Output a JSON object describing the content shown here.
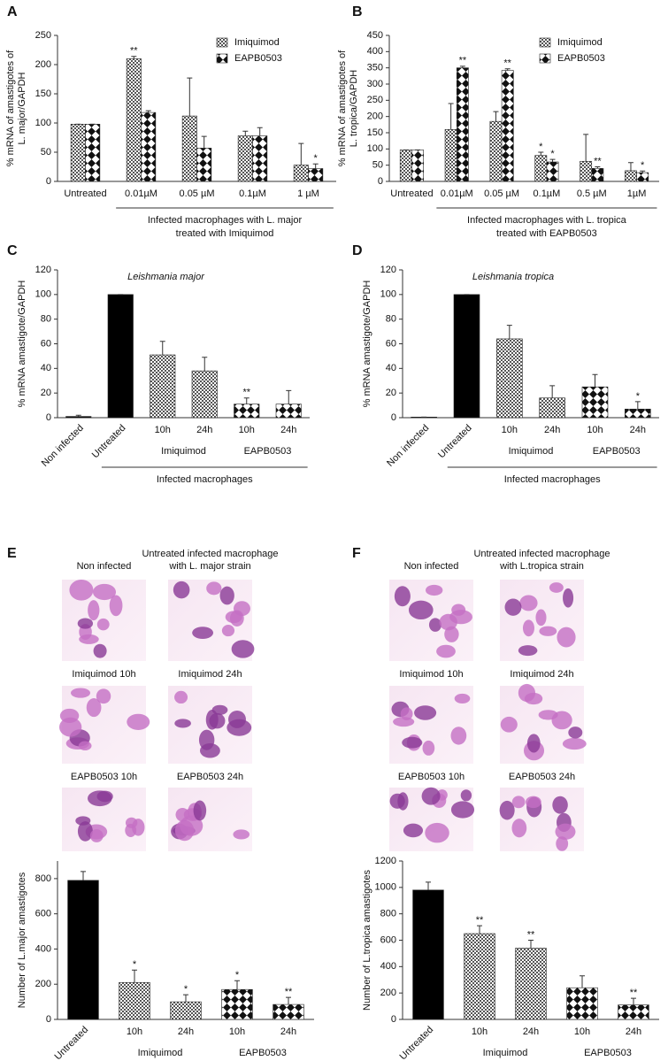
{
  "chart_data": [
    {
      "type": "bar",
      "panel": "A",
      "ylabel": [
        "% mRNA of amastigotes of",
        "L. major/GAPDH"
      ],
      "categories": [
        "Untreated",
        "0.01µM",
        "0.05 µM",
        "0.1µM",
        "1 µM"
      ],
      "series": [
        {
          "name": "Imiquimod",
          "pattern": "checker",
          "values": [
            98,
            210,
            112,
            78,
            28
          ],
          "errors": [
            0,
            4,
            65,
            8,
            37
          ]
        },
        {
          "name": "EAPB0503",
          "pattern": "diamond",
          "values": [
            98,
            118,
            57,
            78,
            22
          ],
          "errors": [
            0,
            3,
            20,
            14,
            8
          ]
        }
      ],
      "annotations": [
        {
          "series": 0,
          "index": 1,
          "text": "**"
        },
        {
          "series": 1,
          "index": 4,
          "text": "*"
        }
      ],
      "group": {
        "label": [
          "Infected macrophages with L. major",
          "treated with Imiquimod"
        ],
        "start": 1,
        "end": 4
      },
      "legend": "upper right",
      "ylim": [
        0,
        250
      ],
      "yticks": [
        0,
        50,
        100,
        150,
        200,
        250
      ]
    },
    {
      "type": "bar",
      "panel": "B",
      "ylabel": [
        "% mRNA of amastigotes of",
        "L. tropica/GAPDH"
      ],
      "categories": [
        "Untreated",
        "0.01µM",
        "0.05 µM",
        "0.1µM",
        "0.5 µM",
        "1µM"
      ],
      "series": [
        {
          "name": "Imiquimod",
          "pattern": "checker",
          "values": [
            97,
            160,
            185,
            80,
            62,
            33
          ],
          "errors": [
            0,
            80,
            30,
            10,
            83,
            25
          ]
        },
        {
          "name": "EAPB0503",
          "pattern": "diamond",
          "values": [
            97,
            350,
            342,
            60,
            40,
            27
          ],
          "errors": [
            0,
            5,
            5,
            8,
            5,
            5
          ]
        }
      ],
      "annotations": [
        {
          "series": 1,
          "index": 1,
          "text": "**"
        },
        {
          "series": 1,
          "index": 2,
          "text": "**"
        },
        {
          "series": 0,
          "index": 3,
          "text": "*"
        },
        {
          "series": 1,
          "index": 3,
          "text": "*"
        },
        {
          "series": 1,
          "index": 4,
          "text": "**"
        },
        {
          "series": 1,
          "index": 5,
          "text": "*"
        }
      ],
      "group": {
        "label": [
          "Infected macrophages with L. tropica",
          "treated with EAPB0503"
        ],
        "start": 1,
        "end": 5
      },
      "legend": "upper right",
      "ylim": [
        0,
        450
      ],
      "yticks": [
        0,
        50,
        100,
        150,
        200,
        250,
        300,
        350,
        400,
        450
      ]
    },
    {
      "type": "bar",
      "panel": "C",
      "title": "Leishmania major",
      "ylabel": [
        "% mRNA amastigote/GAPDH"
      ],
      "categories": [
        "Non infected",
        "Untreated",
        "10h",
        "24h",
        "10h",
        "24h"
      ],
      "values": [
        1,
        100,
        51,
        38,
        11,
        11
      ],
      "errors": [
        1,
        0,
        11,
        11,
        5,
        11
      ],
      "patterns": [
        "solid",
        "solid",
        "checker",
        "checker",
        "diamond",
        "diamond"
      ],
      "color": "#000000",
      "annotations": [
        {
          "index": 4,
          "text": "**"
        }
      ],
      "subgroups": [
        {
          "label": "Imiquimod",
          "start": 2,
          "end": 3
        },
        {
          "label": "EAPB0503",
          "start": 4,
          "end": 5
        }
      ],
      "group": {
        "label": [
          "Infected macrophages"
        ],
        "start": 1,
        "end": 5
      },
      "ylim": [
        0,
        120
      ],
      "yticks": [
        0,
        20,
        40,
        60,
        80,
        100,
        120
      ]
    },
    {
      "type": "bar",
      "panel": "D",
      "title": "Leishmania tropica",
      "ylabel": [
        "% mRNA amastigote/GAPDH"
      ],
      "categories": [
        "Non infected",
        "Untreated",
        "10h",
        "24h",
        "10h",
        "24h"
      ],
      "values": [
        0.5,
        100,
        64,
        16,
        25,
        7
      ],
      "errors": [
        0,
        0,
        11,
        10,
        10,
        6
      ],
      "patterns": [
        "solid",
        "solid",
        "checker",
        "checker",
        "diamond",
        "diamond"
      ],
      "color": "#000000",
      "annotations": [
        {
          "index": 5,
          "text": "*"
        }
      ],
      "subgroups": [
        {
          "label": "Imiquimod",
          "start": 2,
          "end": 3
        },
        {
          "label": "EAPB0503",
          "start": 4,
          "end": 5
        }
      ],
      "group": {
        "label": [
          "Infected macrophages"
        ],
        "start": 1,
        "end": 5
      },
      "ylim": [
        0,
        120
      ],
      "yticks": [
        0,
        20,
        40,
        60,
        80,
        100,
        120
      ]
    },
    {
      "type": "bar",
      "ylabel": [
        "Number of L.major amastigotes"
      ],
      "categories": [
        "Untreated",
        "10h",
        "24h",
        "10h",
        "24h"
      ],
      "values": [
        790,
        210,
        100,
        170,
        85
      ],
      "errors": [
        50,
        70,
        40,
        50,
        40
      ],
      "patterns": [
        "solid",
        "checker",
        "checker",
        "diamond",
        "diamond"
      ],
      "color": "#000000",
      "annotations": [
        {
          "index": 1,
          "text": "*"
        },
        {
          "index": 2,
          "text": "*"
        },
        {
          "index": 3,
          "text": "*"
        },
        {
          "index": 4,
          "text": "**"
        }
      ],
      "subgroups": [
        {
          "label": "Imiquimod",
          "start": 1,
          "end": 2
        },
        {
          "label": "EAPB0503",
          "start": 3,
          "end": 4
        }
      ],
      "ylim": [
        0,
        900
      ],
      "yticks": [
        0,
        200,
        400,
        600,
        800
      ]
    },
    {
      "type": "bar",
      "ylabel": [
        "Number of L.tropica amastigotes"
      ],
      "categories": [
        "Untreated",
        "10h",
        "24h",
        "10h",
        "24h"
      ],
      "values": [
        980,
        650,
        540,
        240,
        110
      ],
      "errors": [
        60,
        60,
        60,
        90,
        50
      ],
      "patterns": [
        "solid",
        "checker",
        "checker",
        "diamond",
        "diamond"
      ],
      "color": "#000000",
      "annotations": [
        {
          "index": 1,
          "text": "**"
        },
        {
          "index": 2,
          "text": "**"
        },
        {
          "index": 4,
          "text": "**"
        }
      ],
      "subgroups": [
        {
          "label": "Imiquimod",
          "start": 1,
          "end": 2
        },
        {
          "label": "EAPB0503",
          "start": 3,
          "end": 4
        }
      ],
      "ylim": [
        0,
        1200
      ],
      "yticks": [
        0,
        200,
        400,
        600,
        800,
        1000,
        1200
      ]
    }
  ],
  "micrographs": [
    {
      "panel": "E",
      "images": [
        {
          "label": [
            "Non infected"
          ]
        },
        {
          "label": [
            "Untreated infected macrophage",
            "with L. major strain"
          ]
        },
        {
          "label": [
            "Imiquimod 10h"
          ]
        },
        {
          "label": [
            "Imiquimod 24h"
          ]
        },
        {
          "label": [
            "EAPB0503 10h"
          ]
        },
        {
          "label": [
            "EAPB0503 24h"
          ]
        }
      ]
    },
    {
      "panel": "F",
      "images": [
        {
          "label": [
            "Non infected"
          ]
        },
        {
          "label": [
            "Untreated infected macrophage",
            "with L.tropica strain"
          ]
        },
        {
          "label": [
            "Imiquimod 10h"
          ]
        },
        {
          "label": [
            "Imiquimod 24h"
          ]
        },
        {
          "label": [
            "EAPB0503 10h"
          ]
        },
        {
          "label": [
            "EAPB0503 24h"
          ]
        }
      ]
    }
  ]
}
